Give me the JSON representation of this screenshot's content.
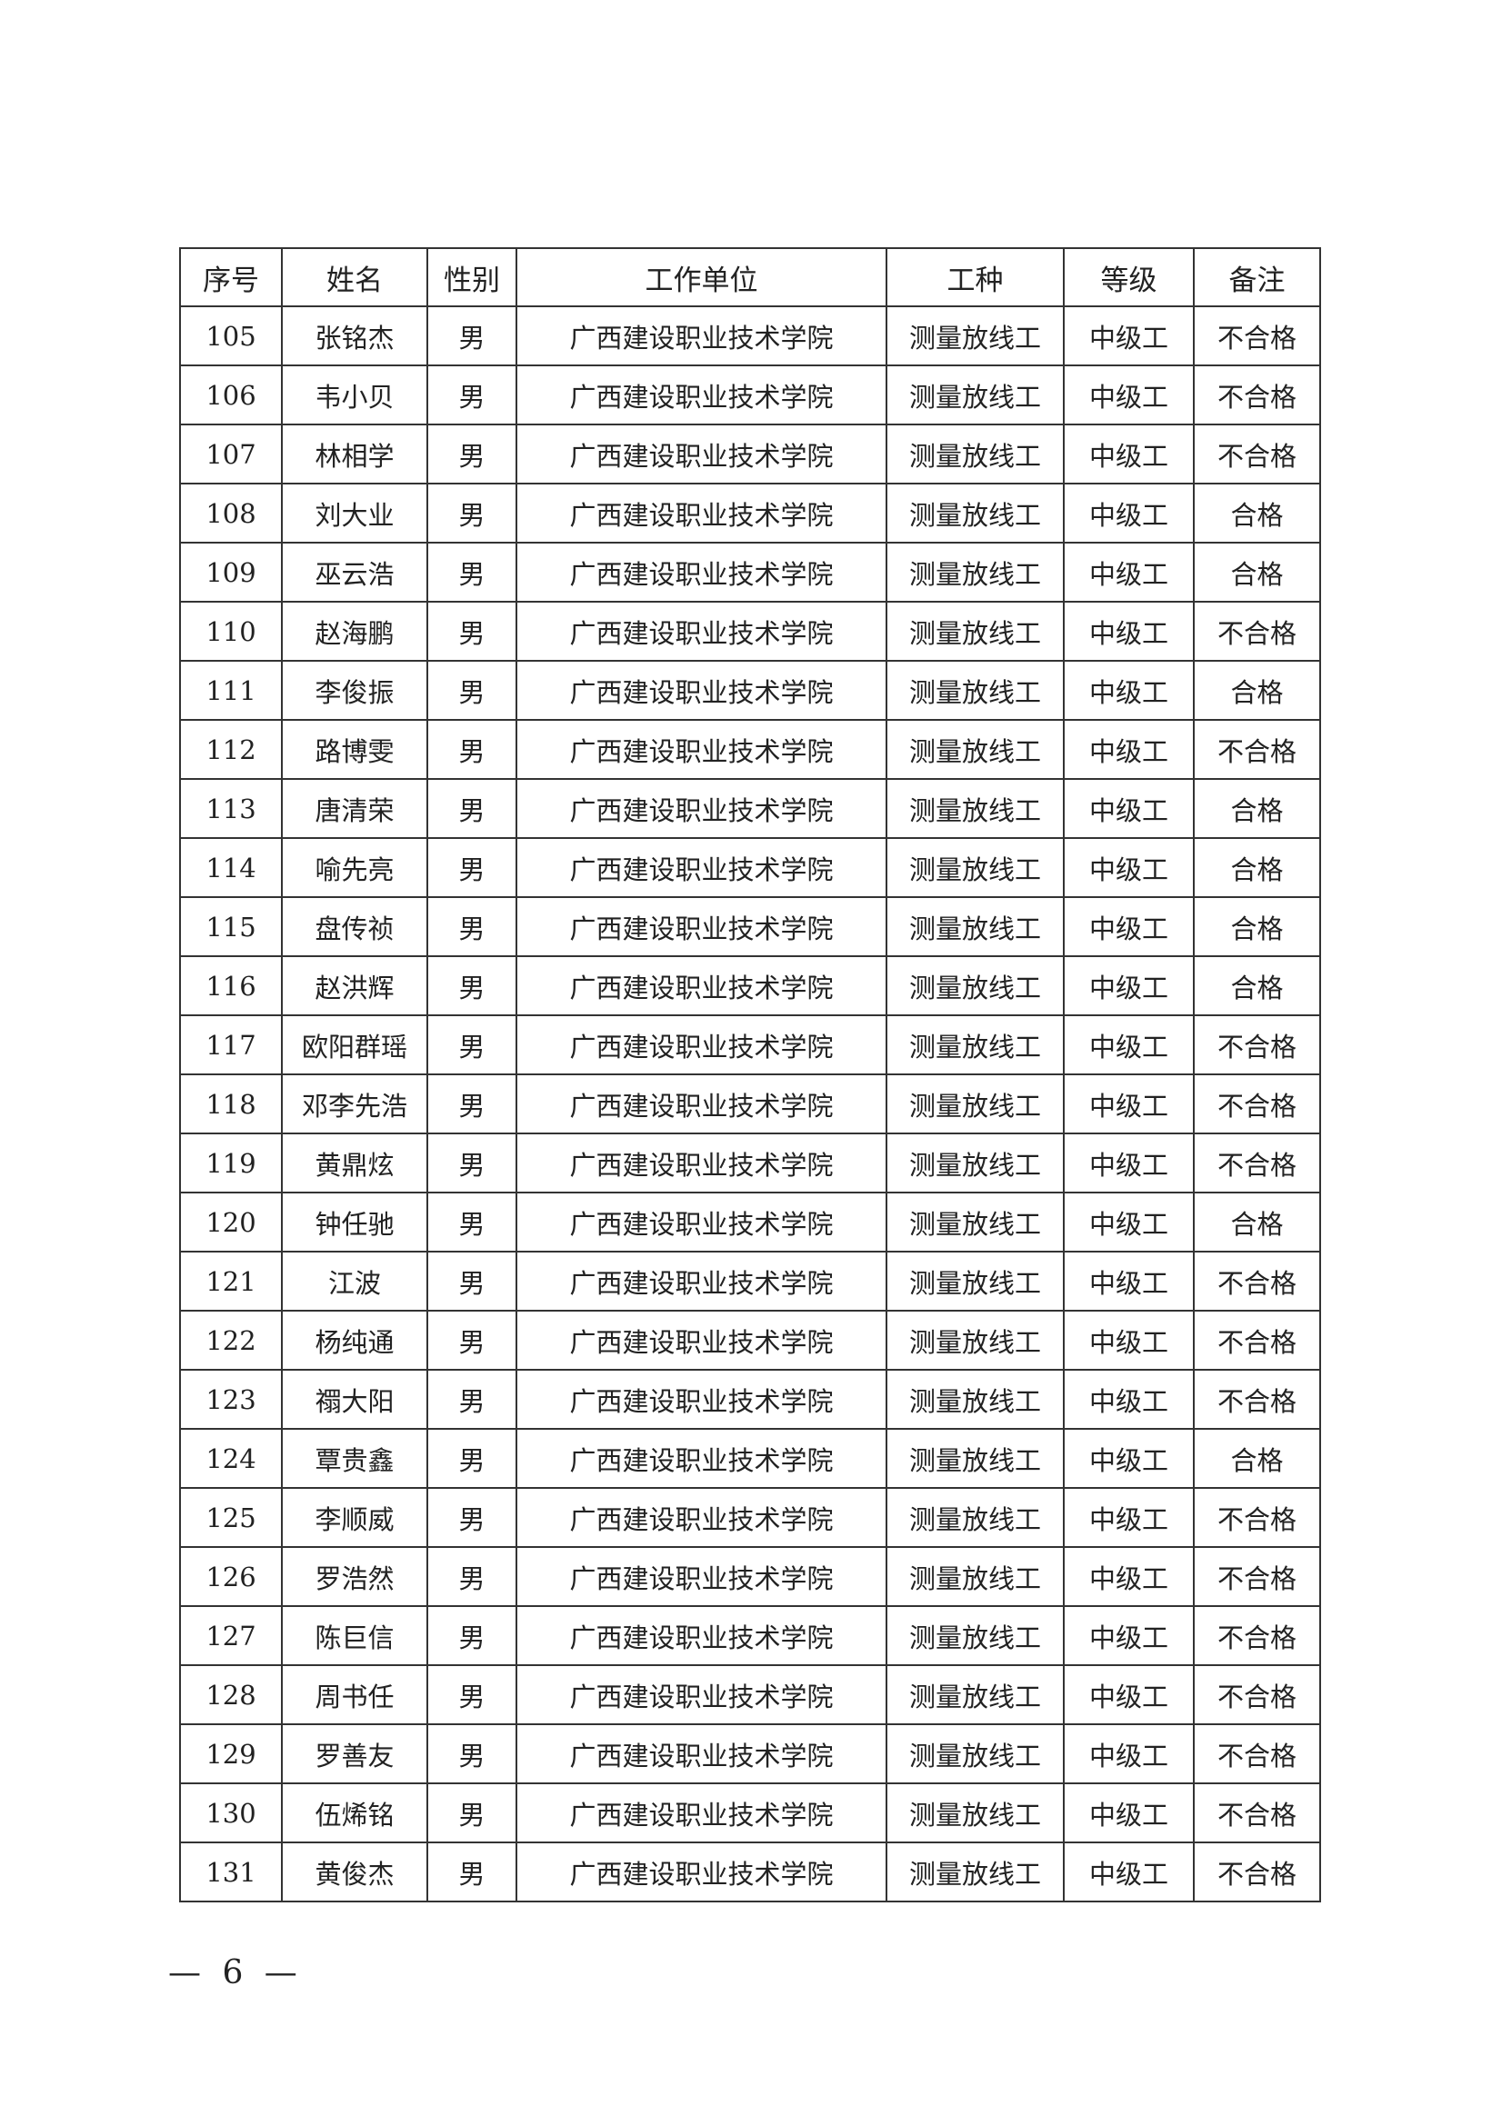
{
  "table": {
    "headers": [
      "序号",
      "姓名",
      "性别",
      "工作单位",
      "工种",
      "等级",
      "备注"
    ],
    "rows": [
      [
        "105",
        "张铭杰",
        "男",
        "广西建设职业技术学院",
        "测量放线工",
        "中级工",
        "不合格"
      ],
      [
        "106",
        "韦小贝",
        "男",
        "广西建设职业技术学院",
        "测量放线工",
        "中级工",
        "不合格"
      ],
      [
        "107",
        "林相学",
        "男",
        "广西建设职业技术学院",
        "测量放线工",
        "中级工",
        "不合格"
      ],
      [
        "108",
        "刘大业",
        "男",
        "广西建设职业技术学院",
        "测量放线工",
        "中级工",
        "合格"
      ],
      [
        "109",
        "巫云浩",
        "男",
        "广西建设职业技术学院",
        "测量放线工",
        "中级工",
        "合格"
      ],
      [
        "110",
        "赵海鹏",
        "男",
        "广西建设职业技术学院",
        "测量放线工",
        "中级工",
        "不合格"
      ],
      [
        "111",
        "李俊振",
        "男",
        "广西建设职业技术学院",
        "测量放线工",
        "中级工",
        "合格"
      ],
      [
        "112",
        "路博雯",
        "男",
        "广西建设职业技术学院",
        "测量放线工",
        "中级工",
        "不合格"
      ],
      [
        "113",
        "唐清荣",
        "男",
        "广西建设职业技术学院",
        "测量放线工",
        "中级工",
        "合格"
      ],
      [
        "114",
        "喻先亮",
        "男",
        "广西建设职业技术学院",
        "测量放线工",
        "中级工",
        "合格"
      ],
      [
        "115",
        "盘传祯",
        "男",
        "广西建设职业技术学院",
        "测量放线工",
        "中级工",
        "合格"
      ],
      [
        "116",
        "赵洪辉",
        "男",
        "广西建设职业技术学院",
        "测量放线工",
        "中级工",
        "合格"
      ],
      [
        "117",
        "欧阳群瑶",
        "男",
        "广西建设职业技术学院",
        "测量放线工",
        "中级工",
        "不合格"
      ],
      [
        "118",
        "邓李先浩",
        "男",
        "广西建设职业技术学院",
        "测量放线工",
        "中级工",
        "不合格"
      ],
      [
        "119",
        "黄鼎炫",
        "男",
        "广西建设职业技术学院",
        "测量放线工",
        "中级工",
        "不合格"
      ],
      [
        "120",
        "钟任驰",
        "男",
        "广西建设职业技术学院",
        "测量放线工",
        "中级工",
        "合格"
      ],
      [
        "121",
        "江波",
        "男",
        "广西建设职业技术学院",
        "测量放线工",
        "中级工",
        "不合格"
      ],
      [
        "122",
        "杨纯通",
        "男",
        "广西建设职业技术学院",
        "测量放线工",
        "中级工",
        "不合格"
      ],
      [
        "123",
        "禤大阳",
        "男",
        "广西建设职业技术学院",
        "测量放线工",
        "中级工",
        "不合格"
      ],
      [
        "124",
        "覃贵鑫",
        "男",
        "广西建设职业技术学院",
        "测量放线工",
        "中级工",
        "合格"
      ],
      [
        "125",
        "李顺威",
        "男",
        "广西建设职业技术学院",
        "测量放线工",
        "中级工",
        "不合格"
      ],
      [
        "126",
        "罗浩然",
        "男",
        "广西建设职业技术学院",
        "测量放线工",
        "中级工",
        "不合格"
      ],
      [
        "127",
        "陈巨信",
        "男",
        "广西建设职业技术学院",
        "测量放线工",
        "中级工",
        "不合格"
      ],
      [
        "128",
        "周书任",
        "男",
        "广西建设职业技术学院",
        "测量放线工",
        "中级工",
        "不合格"
      ],
      [
        "129",
        "罗善友",
        "男",
        "广西建设职业技术学院",
        "测量放线工",
        "中级工",
        "不合格"
      ],
      [
        "130",
        "伍烯铭",
        "男",
        "广西建设职业技术学院",
        "测量放线工",
        "中级工",
        "不合格"
      ],
      [
        "131",
        "黄俊杰",
        "男",
        "广西建设职业技术学院",
        "测量放线工",
        "中级工",
        "不合格"
      ]
    ]
  },
  "footer": {
    "page_number": "— 6 —"
  }
}
